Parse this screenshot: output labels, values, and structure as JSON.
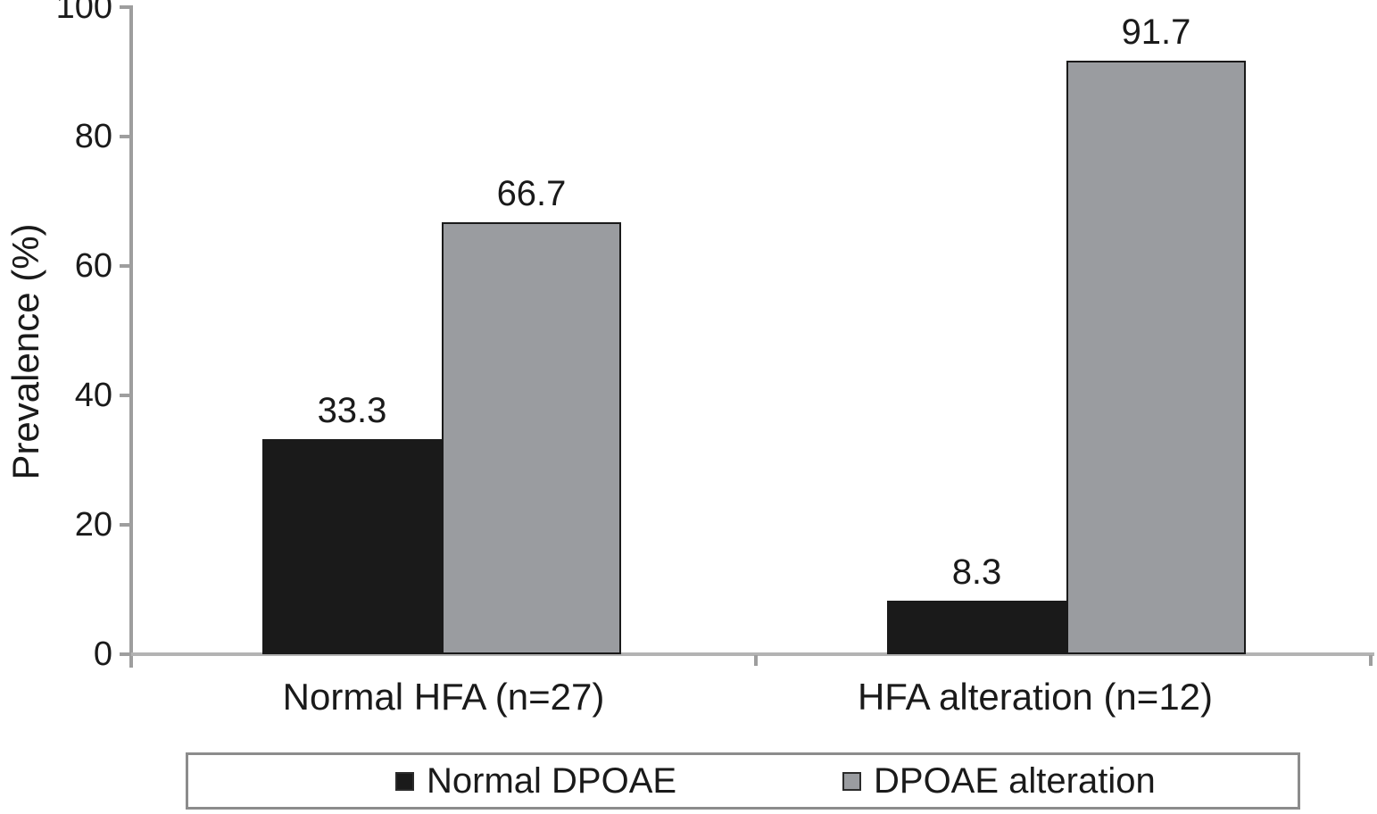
{
  "chart_data": {
    "type": "bar",
    "title": "",
    "xlabel": "",
    "ylabel": "Prevalence (%)",
    "ylim": [
      0,
      100
    ],
    "yticks": [
      0,
      20,
      40,
      60,
      80,
      100
    ],
    "grid": false,
    "legend_position": "bottom-box",
    "categories": [
      "Normal HFA (n=27)",
      "HFA alteration (n=12)"
    ],
    "series": [
      {
        "name": "Normal DPOAE",
        "color": "#1a1a1a",
        "values": [
          33.3,
          8.3
        ]
      },
      {
        "name": "DPOAE alteration",
        "color": "#9a9ca0",
        "values": [
          66.7,
          91.7
        ]
      }
    ],
    "value_labels": {
      "normal_dpoae": [
        "33.3",
        "8.3"
      ],
      "dpoae_alteration": [
        "66.7",
        "91.7"
      ]
    }
  },
  "colors": {
    "bar_black": "#1a1a1a",
    "bar_gray": "#9a9ca0",
    "bar_outline": "#1a1a1a",
    "axis_line": "#9e9e9e",
    "baseline": "#b3b3b3",
    "legend_border": "#8c8c8c",
    "text": "#1a1a1a",
    "background": "#ffffff"
  }
}
